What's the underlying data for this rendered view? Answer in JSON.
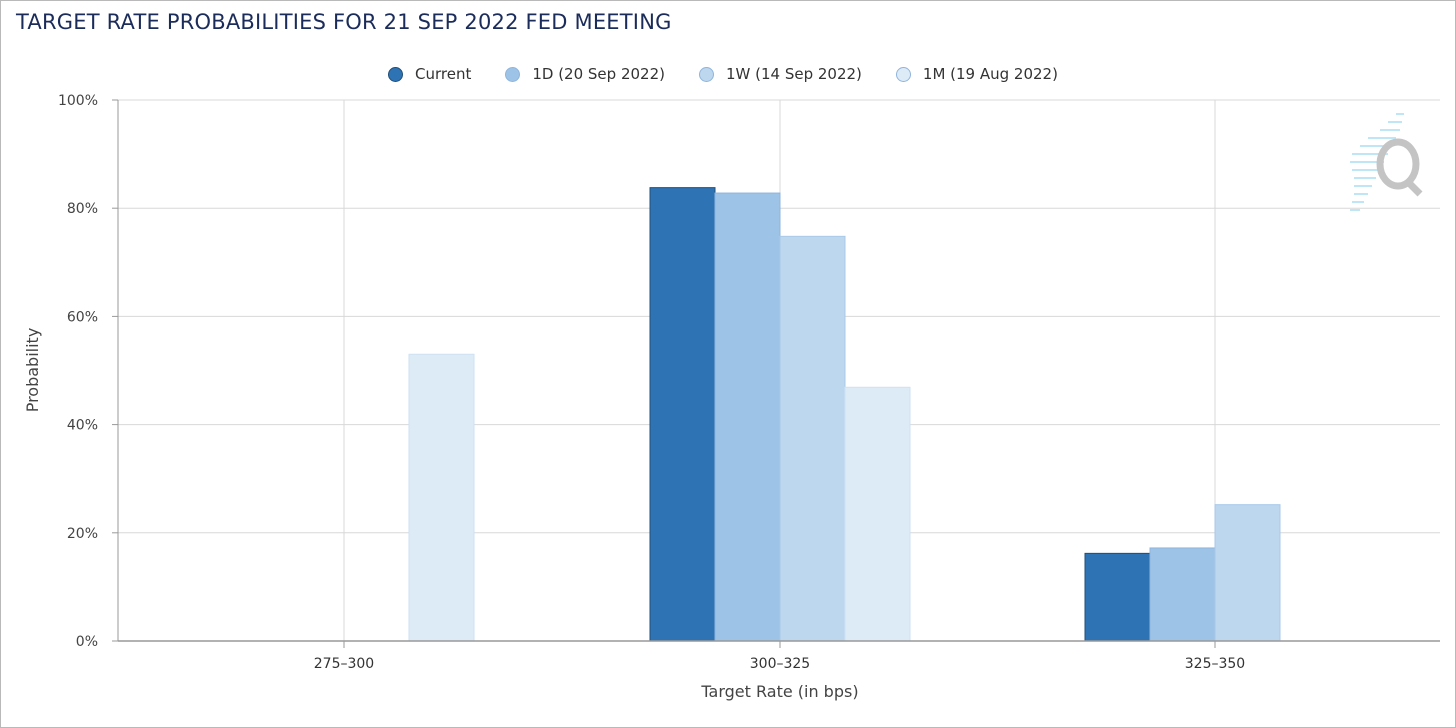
{
  "page": {
    "title": "TARGET RATE PROBABILITIES FOR 21 SEP 2022 FED MEETING",
    "watermark_icon": "cme-fedwatch-q-logo"
  },
  "chart_data": {
    "type": "bar",
    "title": "TARGET RATE PROBABILITIES FOR 21 SEP 2022 FED MEETING",
    "xlabel": "Target Rate (in bps)",
    "ylabel": "Probability",
    "categories": [
      "275-300",
      "300-325",
      "325-350"
    ],
    "ylim": [
      0,
      100
    ],
    "yticks": [
      "0%",
      "20%",
      "40%",
      "60%",
      "80%",
      "100%"
    ],
    "ytick_values": [
      0,
      20,
      40,
      60,
      80,
      100
    ],
    "grid": true,
    "legend_position": "top-center",
    "series": [
      {
        "name": "Current",
        "color": "#2e74b5",
        "values": [
          0,
          83.8,
          16.2
        ]
      },
      {
        "name": "1D (20 Sep 2022)",
        "color": "#9dc3e6",
        "values": [
          0,
          82.8,
          17.2
        ]
      },
      {
        "name": "1W (14 Sep 2022)",
        "color": "#bdd7ee",
        "values": [
          0,
          74.8,
          25.2
        ]
      },
      {
        "name": "1M (19 Aug 2022)",
        "color": "#ddebf7",
        "values": [
          53.0,
          46.9,
          0
        ]
      }
    ]
  }
}
